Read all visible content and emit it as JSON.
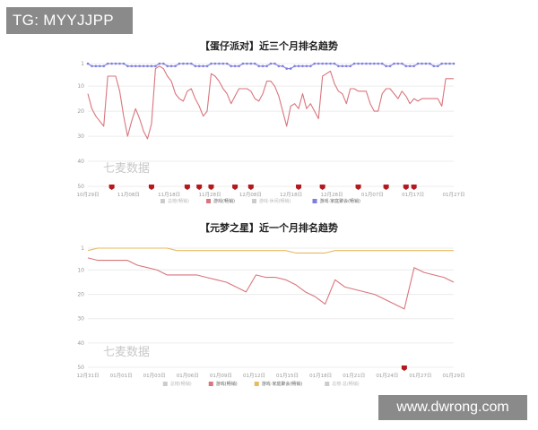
{
  "watermark_tg": "TG: MYYJJPP",
  "watermark_site": "www.dwrong.com",
  "colors": {
    "red": "#d9757d",
    "blue": "#7e7ee0",
    "orange": "#e9b95f",
    "grid": "#ececec",
    "marker": "#b3191f",
    "legend_gray": "#cccccc"
  },
  "chart_data": [
    {
      "type": "line",
      "title": "【蛋仔派对】近三个月排名趋势",
      "y_reversed": true,
      "ylim": [
        1,
        50
      ],
      "y_ticks": [
        "1",
        "10",
        "20",
        "30",
        "40",
        "50"
      ],
      "x_ticks": [
        "10月29日",
        "11月08日",
        "11月18日",
        "11月28日",
        "12月08日",
        "12月18日",
        "12月28日",
        "01月07日",
        "01月17日",
        "01月27日"
      ],
      "brand_watermark": "七麦数据",
      "legend": [
        "总榜(畅销)",
        "游戏(畅销)",
        "游戏·休闲(畅销)",
        "游戏·家庭聚会(畅销)"
      ],
      "series": [
        {
          "name": "游戏(畅销)",
          "color": "#d9757d",
          "values": [
            13,
            19,
            22,
            24,
            26,
            6,
            6,
            6,
            12,
            22,
            30,
            24,
            19,
            23,
            28,
            31,
            25,
            3,
            2,
            3,
            6,
            8,
            13,
            15,
            16,
            12,
            11,
            15,
            18,
            22,
            20,
            5,
            6,
            8,
            11,
            13,
            17,
            14,
            11,
            11,
            11,
            12,
            15,
            16,
            13,
            8,
            8,
            10,
            14,
            20,
            26,
            18,
            17,
            19,
            13,
            19,
            17,
            20,
            23,
            6,
            5,
            4,
            9,
            12,
            13,
            17,
            11,
            11,
            12,
            12,
            12,
            17,
            20,
            20,
            13,
            11,
            11,
            13,
            15,
            12,
            14,
            17,
            15,
            16,
            15,
            15,
            15,
            15,
            15,
            18,
            7,
            7,
            7
          ]
        },
        {
          "name": "游戏·家庭聚会(畅销)",
          "color": "#7e7ee0",
          "values": [
            1,
            2,
            2,
            2,
            2,
            1,
            1,
            1,
            1,
            1,
            2,
            2,
            2,
            2,
            2,
            2,
            2,
            2,
            1,
            1,
            2,
            2,
            2,
            1,
            1,
            1,
            1,
            2,
            2,
            2,
            2,
            1,
            1,
            1,
            1,
            1,
            2,
            2,
            2,
            1,
            1,
            1,
            1,
            2,
            2,
            2,
            1,
            1,
            2,
            2,
            3,
            3,
            2,
            2,
            2,
            2,
            2,
            1,
            1,
            1,
            1,
            1,
            1,
            2,
            2,
            2,
            2,
            1,
            1,
            1,
            1,
            1,
            1,
            1,
            1,
            2,
            2,
            1,
            1,
            1,
            2,
            2,
            2,
            1,
            1,
            1,
            1,
            2,
            2,
            1,
            1,
            1,
            1
          ]
        }
      ],
      "markers_x_index": [
        6,
        16,
        25,
        28,
        31,
        37,
        41,
        53,
        59,
        68,
        75,
        80,
        82
      ]
    },
    {
      "type": "line",
      "title": "【元梦之星】近一个月排名趋势",
      "y_reversed": true,
      "ylim": [
        1,
        50
      ],
      "y_ticks": [
        "1",
        "10",
        "20",
        "30",
        "40",
        "50"
      ],
      "x_ticks": [
        "12月31日",
        "01月01日",
        "01月03日",
        "01月06日",
        "01月09日",
        "01月12日",
        "01月15日",
        "01月18日",
        "01月21日",
        "01月24日",
        "01月27日",
        "01月29日"
      ],
      "brand_watermark": "七麦数据",
      "legend": [
        "总榜(畅销)",
        "游戏(畅销)",
        "游戏·家庭聚会(畅销)",
        "总榜·总(畅销)"
      ],
      "series": [
        {
          "name": "游戏(畅销)",
          "color": "#d9757d",
          "values": [
            5,
            6,
            6,
            6,
            6,
            8,
            9,
            10,
            12,
            12,
            12,
            12,
            13,
            14,
            15,
            17,
            19,
            12,
            13,
            13,
            14,
            16,
            19,
            21,
            24,
            14,
            17,
            18,
            19,
            20,
            22,
            24,
            26,
            9,
            11,
            12,
            13,
            15
          ]
        },
        {
          "name": "游戏·家庭聚会(畅销)",
          "color": "#e9b95f",
          "values": [
            2,
            1,
            1,
            1,
            1,
            1,
            1,
            1,
            1,
            2,
            2,
            2,
            2,
            2,
            2,
            2,
            2,
            2,
            2,
            2,
            2,
            3,
            3,
            3,
            3,
            2,
            2,
            2,
            2,
            2,
            2,
            2,
            2,
            2,
            2,
            2,
            2,
            2
          ]
        }
      ],
      "markers_x_index": [
        32
      ]
    }
  ]
}
